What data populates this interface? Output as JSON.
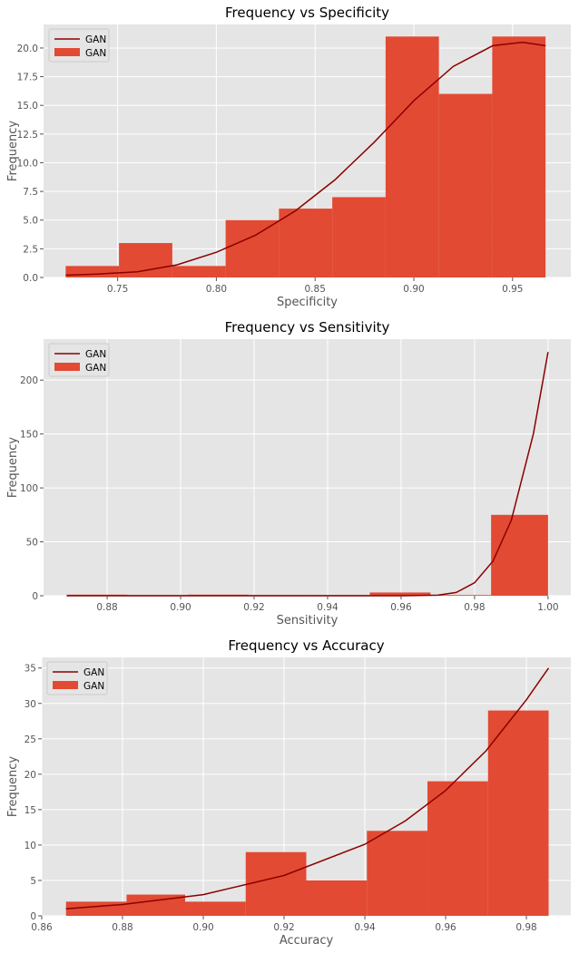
{
  "colors": {
    "bar": "#E24A33",
    "line": "#8B0000",
    "plot_bg": "#E5E5E5",
    "grid": "#FFFFFF",
    "text": "#555555"
  },
  "chart_data": [
    {
      "type": "bar",
      "title": "Frequency vs Specificity",
      "xlabel": "Specificity",
      "ylabel": "Frequency",
      "xlim": [
        0.7125,
        0.9795
      ],
      "ylim": [
        0,
        22.05
      ],
      "xticks": [
        0.75,
        0.8,
        0.85,
        0.9,
        0.95
      ],
      "xtick_labels": [
        "0.75",
        "0.80",
        "0.85",
        "0.90",
        "0.95"
      ],
      "yticks": [
        0,
        2.5,
        5,
        7.5,
        10,
        12.5,
        15,
        17.5,
        20
      ],
      "ytick_labels": [
        "0.0",
        "2.5",
        "5.0",
        "7.5",
        "10.0",
        "12.5",
        "15.0",
        "17.5",
        "20.0"
      ],
      "grid": true,
      "legend": {
        "placement": "top-left",
        "entries": [
          {
            "type": "line",
            "label": "GAN"
          },
          {
            "type": "bar",
            "label": "GAN"
          }
        ]
      },
      "bins": [
        {
          "x0": 0.7237,
          "x1": 0.7507,
          "value": 1
        },
        {
          "x0": 0.7507,
          "x1": 0.7777,
          "value": 3
        },
        {
          "x0": 0.7777,
          "x1": 0.8047,
          "value": 1
        },
        {
          "x0": 0.8047,
          "x1": 0.8317,
          "value": 5
        },
        {
          "x0": 0.8317,
          "x1": 0.8587,
          "value": 6
        },
        {
          "x0": 0.8587,
          "x1": 0.8857,
          "value": 7
        },
        {
          "x0": 0.8857,
          "x1": 0.9127,
          "value": 21
        },
        {
          "x0": 0.9127,
          "x1": 0.9397,
          "value": 16
        },
        {
          "x0": 0.9397,
          "x1": 0.9667,
          "value": 21
        }
      ],
      "curve": {
        "name": "GAN",
        "x": [
          0.7237,
          0.74,
          0.76,
          0.78,
          0.8,
          0.82,
          0.84,
          0.86,
          0.88,
          0.9,
          0.92,
          0.94,
          0.955,
          0.9667
        ],
        "y": [
          0.2,
          0.3,
          0.5,
          1.1,
          2.2,
          3.7,
          5.8,
          8.5,
          11.8,
          15.4,
          18.4,
          20.2,
          20.5,
          20.2
        ]
      }
    },
    {
      "type": "bar",
      "title": "Frequency vs Sensitivity",
      "xlabel": "Sensitivity",
      "ylabel": "Frequency",
      "xlim": [
        0.8627,
        1.0062
      ],
      "ylim": [
        0,
        238
      ],
      "xticks": [
        0.88,
        0.9,
        0.92,
        0.94,
        0.96,
        0.98,
        1.0
      ],
      "xtick_labels": [
        "0.88",
        "0.90",
        "0.92",
        "0.94",
        "0.96",
        "0.98",
        "1.00"
      ],
      "yticks": [
        0,
        50,
        100,
        150,
        200
      ],
      "ytick_labels": [
        "0",
        "50",
        "100",
        "150",
        "200"
      ],
      "grid": true,
      "legend": {
        "placement": "top-left",
        "entries": [
          {
            "type": "line",
            "label": "GAN"
          },
          {
            "type": "bar",
            "label": "GAN"
          }
        ]
      },
      "bins": [
        {
          "x0": 0.869,
          "x1": 0.8855,
          "value": 1
        },
        {
          "x0": 0.8855,
          "x1": 0.902,
          "value": 0
        },
        {
          "x0": 0.902,
          "x1": 0.9185,
          "value": 1
        },
        {
          "x0": 0.9185,
          "x1": 0.935,
          "value": 0
        },
        {
          "x0": 0.935,
          "x1": 0.9515,
          "value": 0
        },
        {
          "x0": 0.9515,
          "x1": 0.968,
          "value": 3
        },
        {
          "x0": 0.968,
          "x1": 0.9845,
          "value": 0
        },
        {
          "x0": 0.9845,
          "x1": 1.0,
          "value": 75
        }
      ],
      "curve": {
        "name": "GAN",
        "x": [
          0.869,
          0.9,
          0.94,
          0.96,
          0.97,
          0.975,
          0.98,
          0.985,
          0.99,
          0.993,
          0.996,
          1.0
        ],
        "y": [
          0,
          0,
          0,
          0,
          0.5,
          3,
          12,
          32,
          70,
          110,
          150,
          226
        ]
      }
    },
    {
      "type": "bar",
      "title": "Frequency vs Accuracy",
      "xlabel": "Accuracy",
      "ylabel": "Frequency",
      "xlim": [
        0.86,
        0.991
      ],
      "ylim": [
        0,
        36.5
      ],
      "xticks": [
        0.86,
        0.88,
        0.9,
        0.92,
        0.94,
        0.96,
        0.98
      ],
      "xtick_labels": [
        "0.86",
        "0.88",
        "0.90",
        "0.92",
        "0.94",
        "0.96",
        "0.98"
      ],
      "yticks": [
        0,
        5,
        10,
        15,
        20,
        25,
        30,
        35
      ],
      "ytick_labels": [
        "0",
        "5",
        "10",
        "15",
        "20",
        "25",
        "30",
        "35"
      ],
      "grid": true,
      "legend": {
        "placement": "top-left",
        "entries": [
          {
            "type": "line",
            "label": "GAN"
          },
          {
            "type": "bar",
            "label": "GAN"
          }
        ]
      },
      "bins": [
        {
          "x0": 0.866,
          "x1": 0.881,
          "value": 2
        },
        {
          "x0": 0.881,
          "x1": 0.8955,
          "value": 3
        },
        {
          "x0": 0.8955,
          "x1": 0.9105,
          "value": 2
        },
        {
          "x0": 0.9105,
          "x1": 0.9255,
          "value": 9
        },
        {
          "x0": 0.9255,
          "x1": 0.9405,
          "value": 5
        },
        {
          "x0": 0.9405,
          "x1": 0.9555,
          "value": 12
        },
        {
          "x0": 0.9555,
          "x1": 0.9705,
          "value": 19
        },
        {
          "x0": 0.9705,
          "x1": 0.9855,
          "value": 29
        }
      ],
      "curve": {
        "name": "GAN",
        "x": [
          0.866,
          0.88,
          0.9,
          0.92,
          0.94,
          0.95,
          0.96,
          0.97,
          0.98,
          0.9855
        ],
        "y": [
          1.0,
          1.6,
          3.0,
          5.7,
          10.1,
          13.4,
          17.7,
          23.3,
          30.5,
          35
        ]
      }
    }
  ]
}
